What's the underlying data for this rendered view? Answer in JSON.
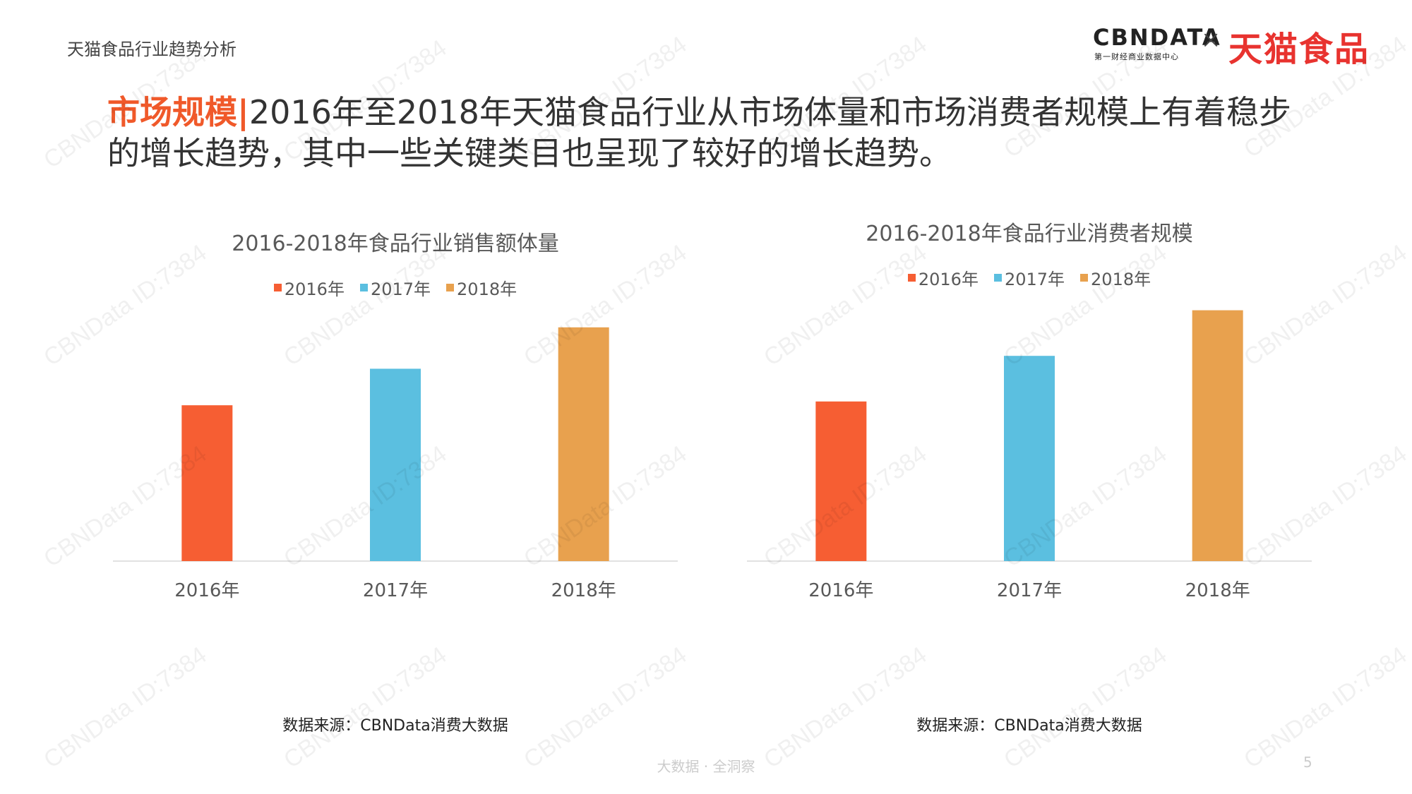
{
  "header": {
    "title": "天猫食品行业趋势分析"
  },
  "logo": {
    "cbn": "CBNDATA",
    "cbn_sub": "第一财经商业数据中心",
    "cross": "×",
    "tmall": "天猫食品"
  },
  "headline": {
    "tag": "市场规模|",
    "text": "2016年至2018年天猫食品行业从市场体量和市场消费者规模上有着稳步的增长趋势，其中一些关键类目也呈现了较好的增长趋势。"
  },
  "watermark": "CBNData ID:7384",
  "footer": {
    "tagline": "大数据 · 全洞察",
    "page": "5"
  },
  "colors": {
    "y2016": "#f65e33",
    "y2017": "#5bbfe0",
    "y2018": "#e8a14e",
    "accent": "#f0592a"
  },
  "chart_data": [
    {
      "type": "bar",
      "title": "2016-2018年食品行业销售额体量",
      "categories": [
        "2016年",
        "2017年",
        "2018年"
      ],
      "values": [
        0.64,
        0.79,
        0.96
      ],
      "colors": [
        "#f65e33",
        "#5bbfe0",
        "#e8a14e"
      ],
      "legend": [
        "2016年",
        "2017年",
        "2018年"
      ],
      "legend_position": "top",
      "ylim": [
        0,
        1
      ],
      "grid": false,
      "source": "数据来源：CBNData消费大数据"
    },
    {
      "type": "bar",
      "title": "2016-2018年食品行业消费者规模",
      "categories": [
        "2016年",
        "2017年",
        "2018年"
      ],
      "values": [
        0.63,
        0.81,
        0.99
      ],
      "colors": [
        "#f65e33",
        "#5bbfe0",
        "#e8a14e"
      ],
      "legend": [
        "2016年",
        "2017年",
        "2018年"
      ],
      "legend_position": "top",
      "ylim": [
        0,
        1
      ],
      "grid": false,
      "source": "数据来源：CBNData消费大数据"
    }
  ]
}
